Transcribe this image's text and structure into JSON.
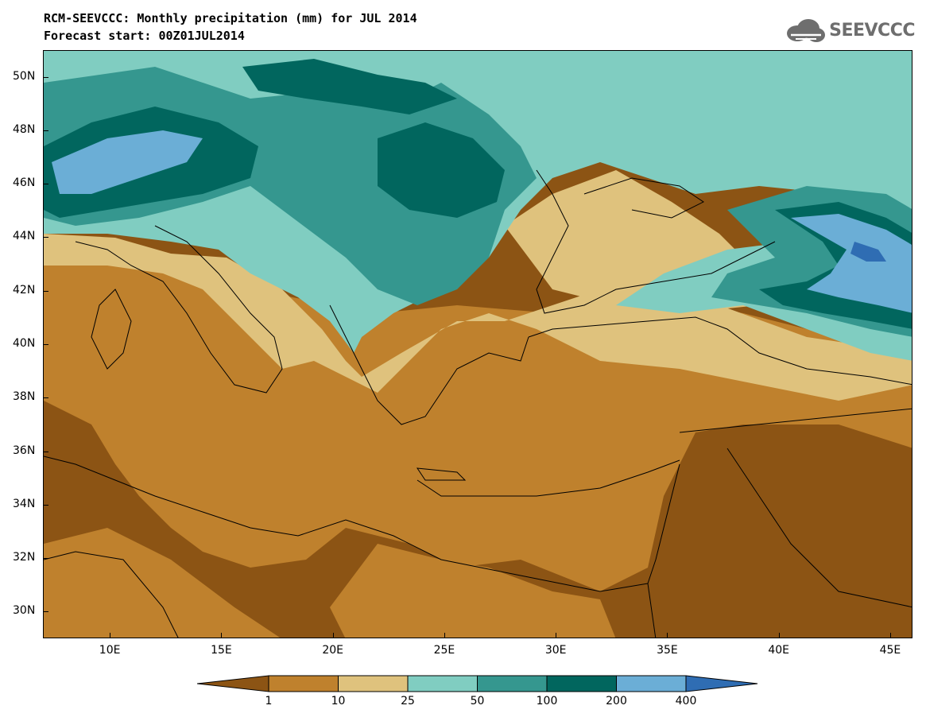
{
  "title": {
    "line1": "RCM-SEEVCCC: Monthly precipitation (mm) for JUL 2014",
    "line2": "Forecast start: 00Z01JUL2014"
  },
  "logo": {
    "text": "SEEVCCC",
    "icon": "cloud-icon"
  },
  "map": {
    "lat_labels": [
      "50N",
      "48N",
      "46N",
      "44N",
      "42N",
      "40N",
      "38N",
      "36N",
      "34N",
      "32N",
      "30N"
    ],
    "lon_labels": [
      "10E",
      "15E",
      "20E",
      "25E",
      "30E",
      "35E",
      "40E",
      "45E"
    ],
    "lat_range": [
      29,
      51
    ],
    "lon_range": [
      7,
      46
    ]
  },
  "colorbar": {
    "labels": [
      "1",
      "10",
      "25",
      "50",
      "100",
      "200",
      "400"
    ],
    "colors": [
      "#8c5414",
      "#bf812d",
      "#dfc27d",
      "#80cdc1",
      "#35978f",
      "#01665e",
      "#6baed6",
      "#2f6db3"
    ],
    "units": "mm"
  }
}
